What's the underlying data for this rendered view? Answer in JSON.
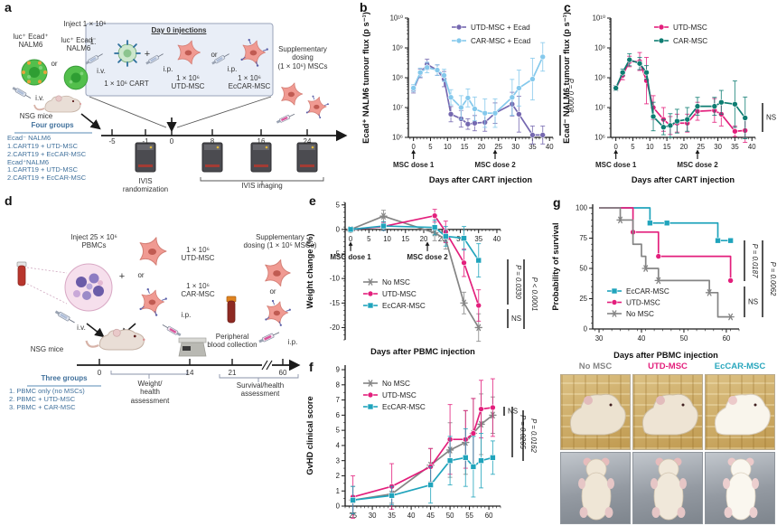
{
  "figure": {
    "panels": {
      "a": "a",
      "b": "b",
      "c": "c",
      "d": "d",
      "e": "e",
      "f": "f",
      "g": "g"
    }
  },
  "colors": {
    "purple": "#7568b0",
    "light_blue": "#85c9ec",
    "pink": "#e31f7c",
    "dark_teal": "#0e7d72",
    "cyan_teal": "#20a4bc",
    "gray": "#858585",
    "diagram_blue": "#41719c"
  },
  "panel_a": {
    "inject": "Inject 1 × 10⁶",
    "cell_left": [
      "luc⁺ Ecad⁺",
      "NALM6"
    ],
    "or1": "or",
    "cell_right": [
      "luc⁺ Ecad⁻",
      "NALM6"
    ],
    "iv": "i.v.",
    "nsg": "NSG mice",
    "day0_title": "Day 0 injections",
    "one": "1.",
    "iv2": "i.v.",
    "cart_label": "1 × 10⁶ CART",
    "plus": "+",
    "ip1": "i.p.",
    "utd_label": [
      "1 × 10⁶",
      "UTD-MSC"
    ],
    "or2": "or",
    "ip2": "i.p.",
    "eccar_label": [
      "1 × 10⁶",
      "EcCAR-MSC"
    ],
    "supplementary": [
      "Supplementary",
      "dosing",
      "(1 × 10⁶) MSCs"
    ],
    "timeline": {
      "t0": "-5",
      "t1": "-1",
      "t2": "0",
      "t3": "8",
      "t4": "16",
      "t5": "24"
    },
    "groups_title": "Four groups",
    "groups": [
      "Ecad⁻ NALM6",
      "1.CART19 + UTD-MSC",
      "2.CART19 + EcCAR-MSC",
      "Ecad⁺NALM6",
      "1.CART19 + UTD-MSC",
      "2.CART19 + EcCAR-MSC"
    ],
    "ivis_rand": [
      "IVIS",
      "randomization"
    ],
    "ivis_imaging": "IVIS imaging"
  },
  "panel_d": {
    "inject": [
      "Inject 25 × 10⁶",
      "PBMCs"
    ],
    "plus": "+",
    "utd_label": [
      "1 × 10⁶",
      "UTD-MSC"
    ],
    "or1": "or",
    "car_label": [
      "1 × 10⁶",
      "CAR-MSC"
    ],
    "iv": "i.v.",
    "nsg": "NSG mice",
    "ip1": "i.p.",
    "peripheral": [
      "Peripheral",
      "blood collection"
    ],
    "supplementary": [
      "Supplementary",
      "dosing (1 × 10⁵ MSCs)"
    ],
    "or2": "or",
    "ip2": "i.p.",
    "timeline": {
      "t0": "0",
      "t1": "14",
      "t2": "21",
      "t3": "60"
    },
    "groups_title": "Three groups",
    "groups": [
      "1. PBMC only (no MSCs)",
      "2. PBMC + UTD-MSC",
      "3. PBMC + CAR-MSC"
    ],
    "weight": [
      "Weight/",
      "health",
      "assessment"
    ],
    "survival": [
      "Survival/health",
      "assessment"
    ]
  },
  "photos": {
    "labels": [
      {
        "text": "No MSC",
        "color": "#858585"
      },
      {
        "text": "UTD-MSC",
        "color": "#e31f7c"
      },
      {
        "text": "EcCAR-MSC",
        "color": "#2aa7bd"
      }
    ]
  },
  "chart_data": [
    {
      "panel": "b",
      "type": "line",
      "yscale": "log",
      "xlabel": "Days after CART injection",
      "ylabel": "Ecad⁺ NALM6 tumour flux (p s⁻¹)",
      "xlim": [
        -1.5,
        41
      ],
      "ylim": [
        1000000,
        10000000000
      ],
      "xticks": [
        0,
        5,
        10,
        15,
        20,
        25,
        30,
        35,
        40
      ],
      "yticks": [
        1000000,
        10000000,
        100000000,
        1000000000,
        10000000000
      ],
      "ytick_labels": [
        "10⁶",
        "10⁷",
        "10⁸",
        "10⁹",
        "10¹⁰"
      ],
      "x": [
        0,
        2,
        4,
        7,
        9,
        11,
        14,
        16,
        18,
        21,
        24,
        29,
        31,
        35,
        38
      ],
      "series": [
        {
          "name": "UTD-MSC + Ecad",
          "color": "#7568b0",
          "marker": "circle",
          "y": [
            40000000,
            140000000,
            280000000,
            180000000,
            90000000,
            6000000,
            4200000,
            2800000,
            3000000,
            3200000,
            6500000,
            13000000,
            6000000,
            1200000,
            1200000
          ],
          "err_factor": [
            1.3,
            1.4,
            1.5,
            1.5,
            1.8,
            1.8,
            1.9,
            1.5,
            1.8,
            2.0,
            2.2,
            2.5,
            4,
            2,
            2
          ]
        },
        {
          "name": "CAR-MSC + Ecad",
          "color": "#85c9ec",
          "marker": "circle",
          "y": [
            45000000,
            150000000,
            220000000,
            180000000,
            120000000,
            22000000,
            10000000,
            21000000,
            9000000,
            6500000,
            6500000,
            22000000,
            45000000,
            90000000,
            500000000
          ],
          "err_factor": [
            1.3,
            1.4,
            1.5,
            1.5,
            1.6,
            1.8,
            2.5,
            2.0,
            2.5,
            3,
            3,
            4,
            4,
            5,
            3
          ]
        }
      ],
      "dose_labels": [
        {
          "day": 0,
          "label": "MSC dose 1"
        },
        {
          "day": 24,
          "label": "MSC dose 2"
        }
      ],
      "annotations": [
        {
          "label": "P = 0.0008"
        }
      ]
    },
    {
      "panel": "c",
      "type": "line",
      "yscale": "log",
      "xlabel": "Days after CART injection",
      "ylabel": "Ecad⁻ NALM6 tumour flux (p s⁻¹)",
      "xlim": [
        -1.5,
        41
      ],
      "ylim": [
        1000000,
        10000000000
      ],
      "xticks": [
        0,
        5,
        10,
        15,
        20,
        25,
        30,
        35,
        40
      ],
      "yticks": [
        1000000,
        10000000,
        100000000,
        1000000000,
        10000000000
      ],
      "ytick_labels": [
        "10⁶",
        "10⁷",
        "10⁸",
        "10⁹",
        "10¹⁰"
      ],
      "x": [
        0,
        2,
        4,
        7,
        9,
        11,
        14,
        16,
        18,
        21,
        24,
        29,
        31,
        35,
        38
      ],
      "series": [
        {
          "name": "UTD-MSC",
          "color": "#e31f7c",
          "marker": "circle",
          "y": [
            45000000,
            120000000,
            350000000,
            350000000,
            80000000,
            10000000,
            4000000,
            2500000,
            3000000,
            3000000,
            7500000,
            8000000,
            6000000,
            1600000,
            1700000
          ],
          "err_factor": [
            1.2,
            1.4,
            1.5,
            2,
            6,
            2.5,
            2.5,
            2,
            2,
            2,
            2,
            2.5,
            2.5,
            1.5,
            2.5
          ]
        },
        {
          "name": "CAR-MSC",
          "color": "#0e7d72",
          "marker": "circle",
          "y": [
            45000000,
            150000000,
            400000000,
            300000000,
            150000000,
            5000000,
            2200000,
            2500000,
            3500000,
            4000000,
            11000000,
            11000000,
            15000000,
            13000000,
            4500000
          ],
          "err_factor": [
            1.2,
            1.3,
            1.6,
            1.6,
            1.7,
            3,
            1.8,
            2.5,
            2.5,
            2.5,
            2,
            2,
            2.5,
            6,
            5
          ]
        }
      ],
      "dose_labels": [
        {
          "day": 0,
          "label": "MSC dose 1"
        },
        {
          "day": 24,
          "label": "MSC dose 2"
        }
      ],
      "annotations": [
        {
          "label": "NS"
        }
      ]
    },
    {
      "panel": "e",
      "type": "line",
      "yscale": "linear",
      "xlabel": "Days after PBMC injection",
      "ylabel": "Weight change (%)",
      "xlim": [
        -1.5,
        41
      ],
      "ylim": [
        -22.5,
        5.5
      ],
      "xticks": [
        0,
        5,
        10,
        15,
        20,
        25,
        30,
        35,
        40
      ],
      "yticks": [
        5,
        0,
        -5,
        -10,
        -15,
        -20
      ],
      "ytick_labels": [
        "5",
        "0",
        "-5",
        "-10",
        "-15",
        "-20"
      ],
      "x": [
        0,
        9,
        23,
        26,
        31,
        35
      ],
      "series": [
        {
          "name": "No MSC",
          "color": "#858585",
          "marker": "star",
          "y": [
            0,
            2.7,
            -0.7,
            -2.0,
            -15.0,
            -20.0
          ],
          "err": [
            0.3,
            1.2,
            1.6,
            2.0,
            2.2,
            2.8
          ]
        },
        {
          "name": "UTD-MSC",
          "color": "#e31f7c",
          "marker": "circle",
          "y": [
            0,
            0.6,
            2.8,
            -0.5,
            -6.8,
            -15.5
          ],
          "err": [
            0.3,
            0.8,
            1.3,
            2.2,
            2.8,
            3.2
          ]
        },
        {
          "name": "EcCAR-MSC",
          "color": "#20a4bc",
          "marker": "square",
          "y": [
            0,
            0.7,
            0.4,
            -1.4,
            -1.8,
            -6.3
          ],
          "err": [
            0.3,
            0.9,
            1.5,
            2.0,
            2.4,
            3.4
          ]
        }
      ],
      "dose_labels": [
        {
          "day": 0,
          "label": "MSC dose 1"
        },
        {
          "day": 21,
          "label": "MSC dose 2"
        }
      ],
      "annotations": [
        {
          "label": "P = 0.0330"
        },
        {
          "label": "NS"
        },
        {
          "label": "P < 0.0001"
        }
      ]
    },
    {
      "panel": "f",
      "type": "line",
      "yscale": "linear",
      "xlabel": "",
      "ylabel": "GvHD clinical score",
      "xlim": [
        23,
        63
      ],
      "ylim": [
        0,
        9.3
      ],
      "xticks": [
        25,
        30,
        35,
        40,
        45,
        50,
        55,
        60
      ],
      "yticks": [
        0,
        1,
        2,
        3,
        4,
        5,
        6,
        7,
        8,
        9
      ],
      "ytick_labels": [
        "0",
        "1",
        "2",
        "3",
        "4",
        "5",
        "6",
        "7",
        "8",
        "9"
      ],
      "x": [
        25,
        35,
        45,
        50,
        54,
        56,
        58,
        61
      ],
      "series": [
        {
          "name": "No MSC",
          "color": "#858585",
          "marker": "star",
          "y": [
            0.4,
            0.8,
            2.7,
            3.7,
            4.2,
            4.8,
            5.4,
            6.0
          ],
          "err": [
            0.9,
            0.6,
            1.1,
            1.8,
            2.1,
            2.3,
            2.0,
            1.2
          ]
        },
        {
          "name": "UTD-MSC",
          "color": "#e31f7c",
          "marker": "circle",
          "y": [
            0.6,
            1.3,
            2.6,
            4.4,
            4.4,
            4.8,
            6.4,
            6.5
          ],
          "err": [
            1.4,
            1.5,
            1.2,
            2.3,
            1.9,
            2.3,
            1.9,
            1.9
          ]
        },
        {
          "name": "EcCAR-MSC",
          "color": "#20a4bc",
          "marker": "square",
          "y": [
            0.4,
            0.7,
            1.4,
            3.0,
            3.2,
            2.6,
            3.0,
            3.2
          ],
          "err": [
            0.9,
            0.6,
            1.2,
            1.6,
            1.9,
            2.0,
            1.8,
            1.1
          ]
        }
      ],
      "annotations": [
        {
          "label": "NS"
        },
        {
          "label": "P = 0.0265"
        },
        {
          "label": "P = 0.0162"
        }
      ]
    },
    {
      "panel": "g",
      "type": "step",
      "yscale": "linear",
      "xlabel": "Days after PBMC injection",
      "ylabel": "Probability of survival",
      "xlim": [
        28.5,
        63
      ],
      "ylim": [
        0,
        103
      ],
      "xticks": [
        30,
        40,
        50,
        60
      ],
      "yticks": [
        0,
        25,
        50,
        75,
        100
      ],
      "ytick_labels": [
        "0",
        "25",
        "50",
        "75",
        "100"
      ],
      "series": [
        {
          "name": "EcCAR-MSC",
          "color": "#20a4bc",
          "marker": "square",
          "step": true,
          "x": [
            30,
            42,
            42,
            58,
            58,
            61.5
          ],
          "y": [
            100,
            100,
            87.5,
            87.5,
            73,
            73
          ],
          "markers": [
            [
              42,
              87.5
            ],
            [
              46,
              87.5
            ],
            [
              58,
              73
            ],
            [
              61,
              73
            ]
          ]
        },
        {
          "name": "UTD-MSC",
          "color": "#e31f7c",
          "marker": "circle",
          "step": true,
          "x": [
            30,
            38,
            38,
            44,
            44,
            61,
            61
          ],
          "y": [
            100,
            100,
            80,
            80,
            60,
            60,
            40
          ],
          "markers": [
            [
              38,
              80
            ],
            [
              44,
              60
            ],
            [
              61,
              40
            ]
          ]
        },
        {
          "name": "No MSC",
          "color": "#858585",
          "marker": "star",
          "step": true,
          "x": [
            30,
            35,
            35,
            38,
            38,
            40,
            40,
            41,
            41,
            44,
            44,
            56,
            56,
            58,
            58,
            61
          ],
          "y": [
            100,
            100,
            90,
            90,
            70,
            70,
            60,
            60,
            50,
            50,
            40,
            40,
            30,
            30,
            10,
            10
          ],
          "markers": [
            [
              35,
              90
            ],
            [
              41,
              50
            ],
            [
              44,
              40
            ],
            [
              56,
              30
            ],
            [
              61,
              10
            ]
          ]
        }
      ],
      "annotations": [
        {
          "label": "P = 0.0187"
        },
        {
          "label": "NS"
        },
        {
          "label": "P = 0.0062"
        }
      ]
    }
  ]
}
